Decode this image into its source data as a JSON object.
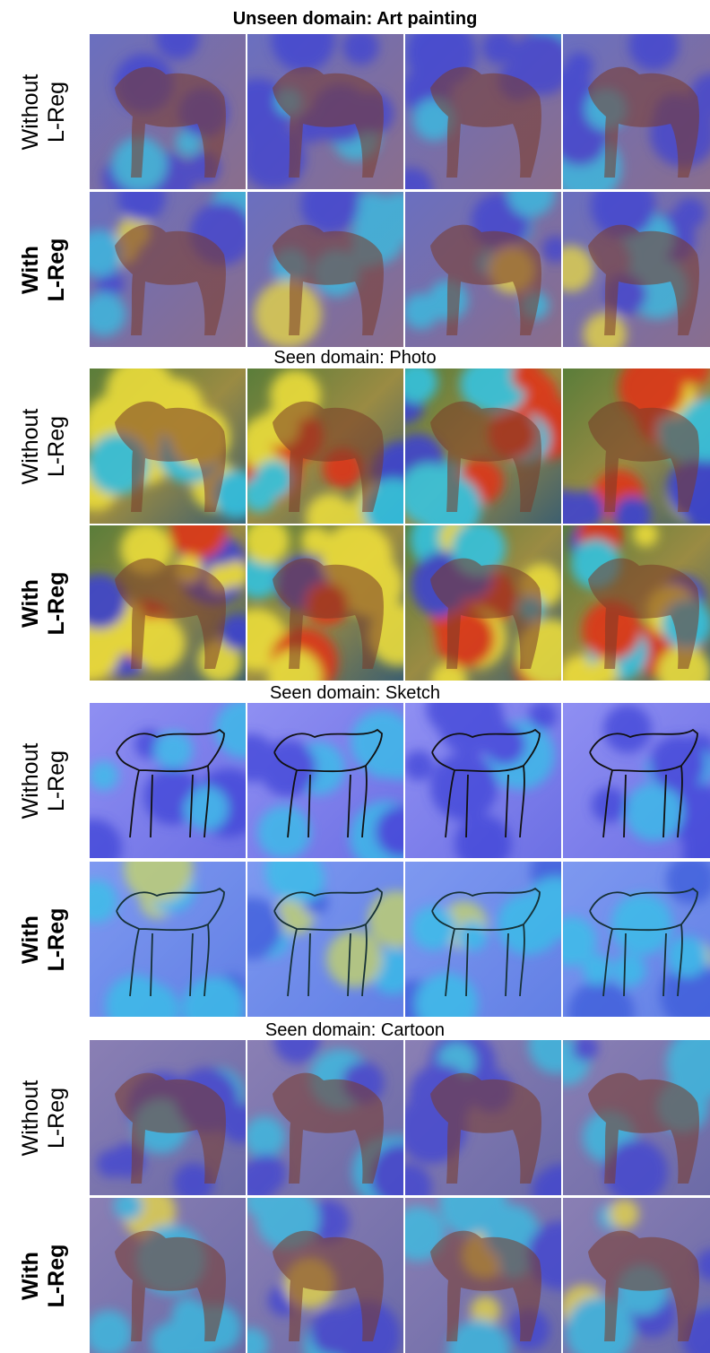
{
  "sections": [
    {
      "title": "Unseen domain: Art painting",
      "bold": true,
      "kind": "art",
      "rows": [
        {
          "line1": "Without",
          "line2": "L-Reg",
          "bold": false,
          "overlay": "low"
        },
        {
          "line1": "With",
          "line2": "L-Reg",
          "bold": true,
          "overlay": "mid"
        }
      ]
    },
    {
      "title": "Seen domain: Photo",
      "bold": false,
      "kind": "photo",
      "rows": [
        {
          "line1": "Without",
          "line2": "L-Reg",
          "bold": false,
          "overlay": "high"
        },
        {
          "line1": "With",
          "line2": "L-Reg",
          "bold": true,
          "overlay": "high"
        }
      ]
    },
    {
      "title": "Seen domain: Sketch",
      "bold": false,
      "kind": "sketch",
      "rows": [
        {
          "line1": "Without",
          "line2": "L-Reg",
          "bold": false,
          "overlay": "low"
        },
        {
          "line1": "With",
          "line2": "L-Reg",
          "bold": true,
          "overlay": "mid"
        }
      ]
    },
    {
      "title": "Seen domain: Cartoon",
      "bold": false,
      "kind": "cartoon",
      "rows": [
        {
          "line1": "Without",
          "line2": "L-Reg",
          "bold": false,
          "overlay": "low"
        },
        {
          "line1": "With",
          "line2": "L-Reg",
          "bold": true,
          "overlay": "mid"
        }
      ]
    }
  ],
  "colors": {
    "background": "#ffffff",
    "heatmap_cold": "#3b3fd6",
    "heatmap_cool": "#33c6e8",
    "heatmap_warm": "#f2e23a",
    "heatmap_hot": "#e23318",
    "sketch_line": "#111111",
    "horse_brown": "#7a3a28"
  }
}
